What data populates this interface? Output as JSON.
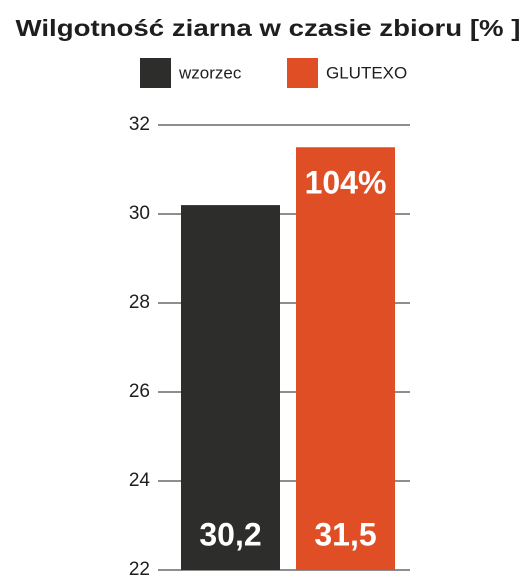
{
  "chart_data": {
    "type": "bar",
    "title": "Wilgotność ziarna w czasie zbioru [%  ]",
    "categories": [
      null
    ],
    "series": [
      {
        "name": "wzorzec",
        "color": "#2d2d2b",
        "values": [
          30.2
        ],
        "value_labels": [
          "30,2"
        ]
      },
      {
        "name": "GLUTEXO",
        "color": "#e04e25",
        "values": [
          31.5
        ],
        "value_labels": [
          "31,5"
        ]
      }
    ],
    "annotations": [
      "104%"
    ],
    "ylim": [
      22,
      32
    ],
    "yticks": [
      22,
      24,
      26,
      28,
      30,
      32
    ],
    "grid": true
  }
}
